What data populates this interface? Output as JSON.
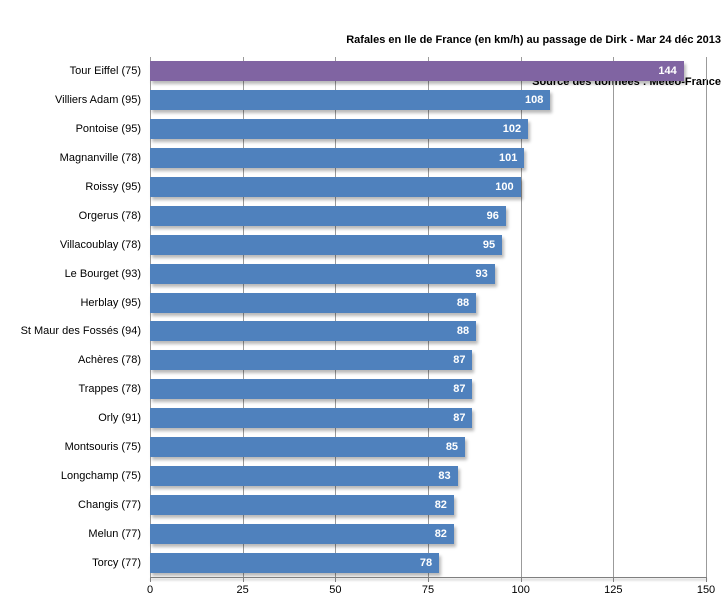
{
  "header": {
    "title": "Rafales en Ile de France (en km/h) au passage de Dirk - Mar 24 déc 2013",
    "subtitle": "Source des données : Météo-France"
  },
  "colors": {
    "bar_default": "#4f81bd",
    "bar_highlight": "#8064a2",
    "gridline": "#9b9b9b",
    "axis_line": "#7f7f7f",
    "value_label": "#ffffff",
    "text": "#000000",
    "background": "#ffffff"
  },
  "chart_data": {
    "type": "bar",
    "orientation": "horizontal",
    "title": "Rafales en Ile de France (en km/h) au passage de Dirk - Mar 24 déc 2013",
    "subtitle": "Source des données : Météo-France",
    "categories": [
      "Tour Eiffel (75)",
      "Villiers Adam (95)",
      "Pontoise (95)",
      "Magnanville (78)",
      "Roissy (95)",
      "Orgerus (78)",
      "Villacoublay (78)",
      "Le Bourget (93)",
      "Herblay (95)",
      "St Maur des Fossés (94)",
      "Achères (78)",
      "Trappes (78)",
      "Orly (91)",
      "Montsouris (75)",
      "Longchamp (75)",
      "Changis (77)",
      "Melun (77)",
      "Torcy (77)"
    ],
    "values": [
      144,
      108,
      102,
      101,
      100,
      96,
      95,
      93,
      88,
      88,
      87,
      87,
      87,
      85,
      83,
      82,
      82,
      78
    ],
    "highlight_index": 0,
    "xlabel": "",
    "ylabel": "",
    "xlim": [
      0,
      150
    ],
    "x_ticks": [
      0,
      25,
      50,
      75,
      100,
      125,
      150
    ],
    "grid": true,
    "legend": false,
    "value_labels": "inside-end"
  }
}
